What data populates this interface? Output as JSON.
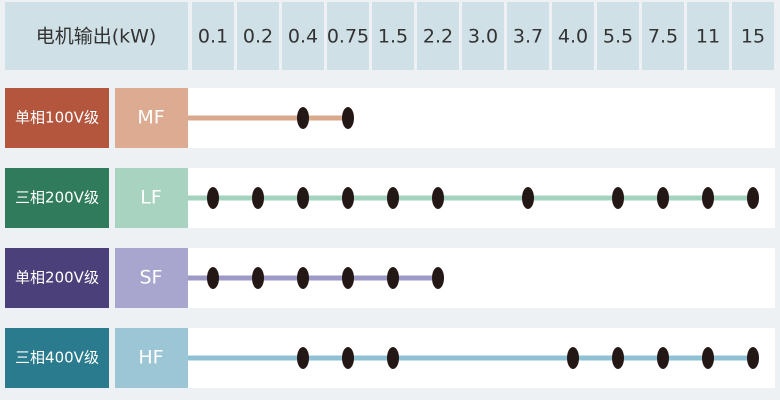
{
  "header": {
    "label": "电机输出(kW)",
    "columns": [
      "0.1",
      "0.2",
      "0.4",
      "0.75",
      "1.5",
      "2.2",
      "3.0",
      "3.7",
      "4.0",
      "5.5",
      "7.5",
      "11",
      "15"
    ]
  },
  "rows": [
    {
      "class": "单相100V级",
      "code": "MF",
      "class_color": "#b4553d",
      "code_color": "#dcab92",
      "line_color": "#d9a98d",
      "available": [
        false,
        false,
        true,
        true,
        false,
        false,
        false,
        false,
        false,
        false,
        false,
        false,
        false
      ]
    },
    {
      "class": "三相200V级",
      "code": "LF",
      "class_color": "#2f7b5c",
      "code_color": "#a7d3c0",
      "line_color": "#a3d3be",
      "available": [
        true,
        true,
        true,
        true,
        true,
        true,
        false,
        true,
        false,
        true,
        true,
        true,
        true
      ]
    },
    {
      "class": "单相200V级",
      "code": "SF",
      "class_color": "#4b4079",
      "code_color": "#a8a5cf",
      "line_color": "#9d9ac7",
      "available": [
        true,
        true,
        true,
        true,
        true,
        true,
        false,
        false,
        false,
        false,
        false,
        false,
        false
      ]
    },
    {
      "class": "三相400V级",
      "code": "HF",
      "class_color": "#2a7b8d",
      "code_color": "#9cc6d5",
      "line_color": "#8fc1d4",
      "available": [
        false,
        false,
        true,
        true,
        true,
        false,
        false,
        false,
        true,
        true,
        true,
        true,
        true
      ]
    }
  ]
}
